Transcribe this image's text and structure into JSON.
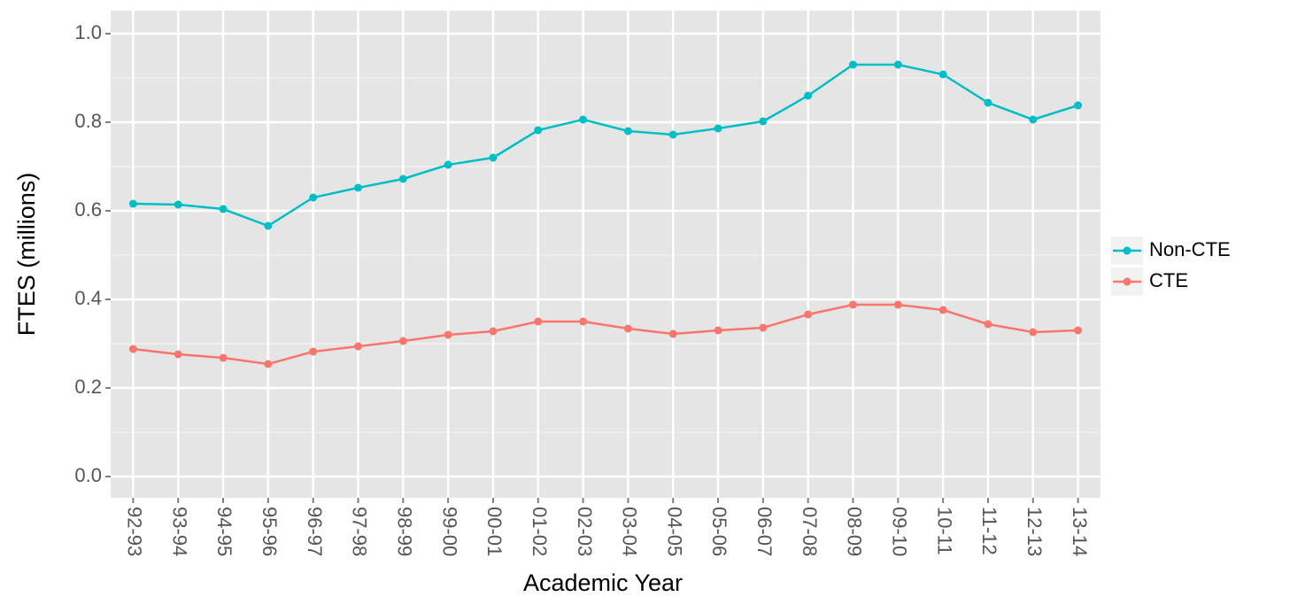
{
  "chart_data": {
    "type": "line",
    "y_label": "FTES (millions)",
    "x_label": "Academic Year",
    "categories": [
      "92-93",
      "93-94",
      "94-95",
      "95-96",
      "96-97",
      "97-98",
      "98-99",
      "99-00",
      "00-01",
      "01-02",
      "02-03",
      "03-04",
      "04-05",
      "05-06",
      "06-07",
      "07-08",
      "08-09",
      "09-10",
      "10-11",
      "11-12",
      "12-13",
      "13-14"
    ],
    "series": [
      {
        "name": "Non-CTE",
        "color": "#00bfc4",
        "values": [
          0.616,
          0.614,
          0.604,
          0.566,
          0.63,
          0.652,
          0.672,
          0.704,
          0.72,
          0.782,
          0.806,
          0.78,
          0.772,
          0.786,
          0.802,
          0.86,
          0.93,
          0.93,
          0.908,
          0.844,
          0.806,
          0.838
        ]
      },
      {
        "name": "CTE",
        "color": "#f8766d",
        "values": [
          0.288,
          0.276,
          0.268,
          0.254,
          0.282,
          0.294,
          0.306,
          0.32,
          0.328,
          0.35,
          0.35,
          0.334,
          0.322,
          0.33,
          0.336,
          0.366,
          0.388,
          0.388,
          0.376,
          0.344,
          0.326,
          0.33
        ]
      }
    ],
    "ylim": [
      -0.048,
      1.052
    ],
    "yticks": [
      {
        "value": 0,
        "label": "0.0"
      },
      0.2,
      0.4,
      0.6,
      0.8,
      {
        "value": 1,
        "label": "1.0"
      }
    ],
    "grid": true
  }
}
